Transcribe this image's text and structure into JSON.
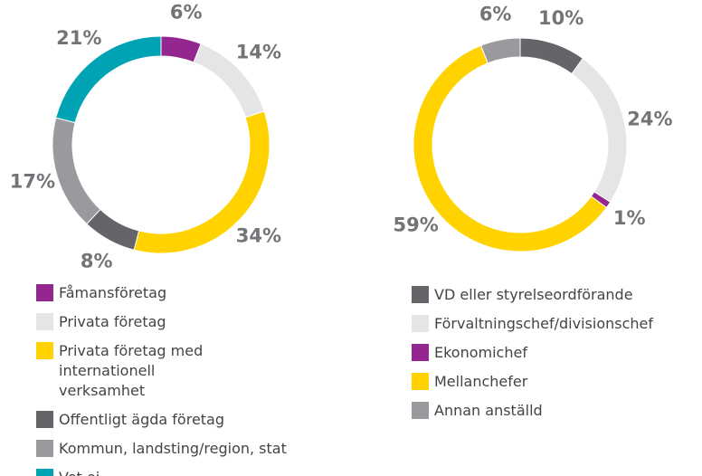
{
  "chart_data": [
    {
      "type": "pie",
      "categories": [
        "Fåmansföretag",
        "Privata företag",
        "Privata företag med internationell verksamhet",
        "Offentligt ägda företag",
        "Kommun, landsting/region, stat",
        "Vet ej"
      ],
      "values": [
        6,
        14,
        34,
        8,
        17,
        21
      ],
      "value_labels": [
        "6%",
        "14%",
        "34%",
        "8%",
        "17%",
        "21%"
      ],
      "colors": [
        "#93278f",
        "#e5e5e8",
        "#ffd200",
        "#646469",
        "#9a9a9e",
        "#00a3b4"
      ]
    },
    {
      "type": "pie",
      "categories": [
        "VD eller styrelseordförande",
        "Förvaltningschef/divisionschef",
        "Ekonomichef",
        "Mellanchefer",
        "Annan anställd"
      ],
      "values": [
        10,
        24,
        1,
        59,
        6
      ],
      "value_labels": [
        "10%",
        "24%",
        "1%",
        "59%",
        "6%"
      ],
      "colors": [
        "#646469",
        "#e5e5e8",
        "#93278f",
        "#ffd200",
        "#9a9a9e"
      ]
    }
  ]
}
